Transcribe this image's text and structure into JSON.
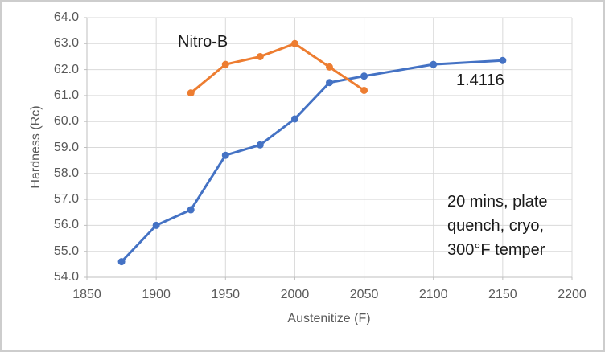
{
  "chart_data": {
    "type": "line",
    "title": "",
    "xlabel": "Austenitize (F)",
    "ylabel": "Hardness (Rc)",
    "xlim": [
      1850,
      2200
    ],
    "ylim": [
      54.0,
      64.0
    ],
    "xticks": [
      {
        "value": 1850,
        "label": "1850"
      },
      {
        "value": 1900,
        "label": "1900"
      },
      {
        "value": 1950,
        "label": "1950"
      },
      {
        "value": 2000,
        "label": "2000"
      },
      {
        "value": 2050,
        "label": "2050"
      },
      {
        "value": 2100,
        "label": "2100"
      },
      {
        "value": 2150,
        "label": "2150"
      },
      {
        "value": 2200,
        "label": "2200"
      }
    ],
    "yticks": [
      {
        "value": 54.0,
        "label": "54.0"
      },
      {
        "value": 55.0,
        "label": "55.0"
      },
      {
        "value": 56.0,
        "label": "56.0"
      },
      {
        "value": 57.0,
        "label": "57.0"
      },
      {
        "value": 58.0,
        "label": "58.0"
      },
      {
        "value": 59.0,
        "label": "59.0"
      },
      {
        "value": 60.0,
        "label": "60.0"
      },
      {
        "value": 61.0,
        "label": "61.0"
      },
      {
        "value": 62.0,
        "label": "62.0"
      },
      {
        "value": 63.0,
        "label": "63.0"
      },
      {
        "value": 64.0,
        "label": "64.0"
      }
    ],
    "grid": true,
    "legend": "none (inline series labels)",
    "series": [
      {
        "name": "1.4116",
        "color": "#4472C4",
        "x": [
          1875,
          1900,
          1925,
          1950,
          1975,
          2000,
          2025,
          2050,
          2100,
          2150
        ],
        "y": [
          54.6,
          56.0,
          56.6,
          58.7,
          59.1,
          60.1,
          61.5,
          61.75,
          62.2,
          62.35
        ]
      },
      {
        "name": "Nitro-B",
        "color": "#ED7D31",
        "x": [
          1925,
          1950,
          1975,
          2000,
          2025,
          2050
        ],
        "y": [
          61.1,
          62.2,
          62.5,
          63.0,
          62.1,
          61.2
        ]
      }
    ],
    "annotation": {
      "lines": [
        "20 mins, plate",
        "quench, cryo,",
        "300°F temper"
      ]
    },
    "style": {
      "gridline_color": "#D9D9D9",
      "axis_line_color": "#BFBFBF",
      "tick_label_color": "#595959",
      "marker_radius": 4.5,
      "line_width": 3
    }
  }
}
